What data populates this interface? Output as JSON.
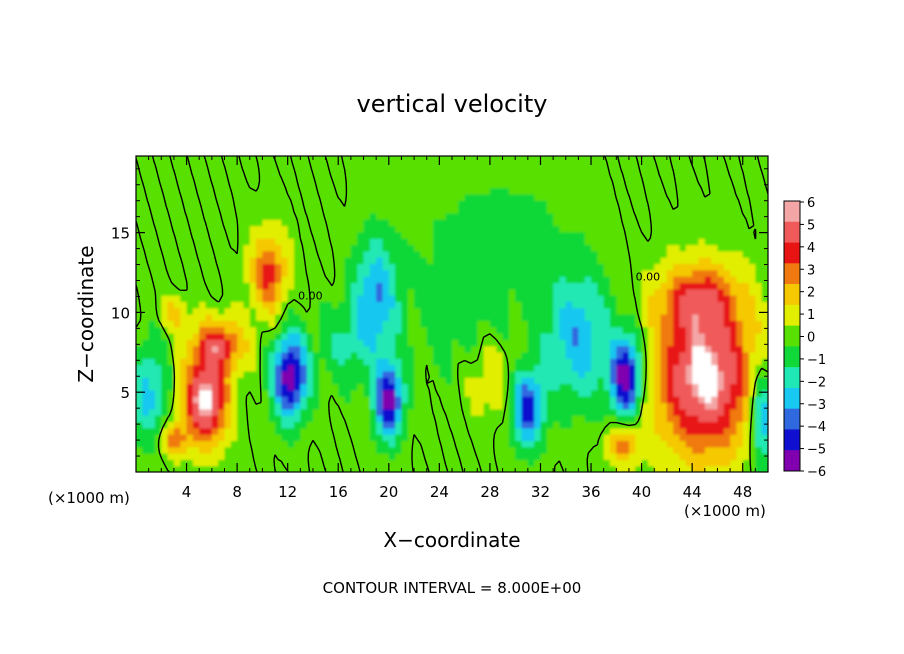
{
  "chart_data": {
    "type": "heatmap",
    "title": "vertical velocity",
    "xlabel": "X−coordinate",
    "ylabel": "Z−coordinate",
    "x_unit_label": "(×1000 m)",
    "y_unit_label": "(×1000 m)",
    "footer": "CONTOUR INTERVAL = 8.000E+00",
    "xlim": [
      0,
      50
    ],
    "ylim": [
      0,
      19.8
    ],
    "x_ticks": [
      4,
      8,
      12,
      16,
      20,
      24,
      28,
      32,
      36,
      40,
      44,
      48
    ],
    "x_tick_labels": [
      "4",
      "8",
      "12",
      "16",
      "20",
      "24",
      "28",
      "32",
      "36",
      "40",
      "44",
      "48"
    ],
    "y_ticks": [
      5,
      10,
      15
    ],
    "y_tick_labels": [
      "5",
      "10",
      "15"
    ],
    "contour_labels": [
      {
        "text": "0.00",
        "x": 13.8,
        "y": 10.8
      },
      {
        "text": "0.00",
        "x": 40.5,
        "y": 12.0
      }
    ],
    "colorbar": {
      "levels": [
        6,
        5,
        4,
        3,
        2,
        1,
        0,
        -1,
        -2,
        -3,
        -4,
        -5,
        -6
      ],
      "labels": [
        "6",
        "5",
        "4",
        "3",
        "2",
        "1",
        "0",
        "−1",
        "−2",
        "−3",
        "−4",
        "−5",
        "−6"
      ],
      "colors": [
        "#f4a6a6",
        "#f05a5a",
        "#e81414",
        "#f07a10",
        "#f5c800",
        "#e2ee00",
        "#58e000",
        "#10d838",
        "#20e8b4",
        "#18c8f0",
        "#3068e0",
        "#1010d0",
        "#8000b0"
      ]
    },
    "field_background": "#4fe03a",
    "features": [
      {
        "name": "updraft",
        "x": 5.5,
        "y": 4.5,
        "sx": 1.7,
        "sy": 2.6,
        "amp": 6.5
      },
      {
        "name": "updraft",
        "x": 6.5,
        "y": 8.0,
        "sx": 2.0,
        "sy": 1.6,
        "amp": 4.2
      },
      {
        "name": "updraft",
        "x": 10.5,
        "y": 12.5,
        "sx": 1.4,
        "sy": 2.4,
        "amp": 3.8
      },
      {
        "name": "updraft",
        "x": 3.0,
        "y": 10.0,
        "sx": 1.0,
        "sy": 1.0,
        "amp": 2.0
      },
      {
        "name": "updraft",
        "x": 3.0,
        "y": 2.0,
        "sx": 1.0,
        "sy": 1.0,
        "amp": 3.0
      },
      {
        "name": "updraft",
        "x": 45.0,
        "y": 6.0,
        "sx": 3.8,
        "sy": 4.8,
        "amp": 6.5
      },
      {
        "name": "updraft",
        "x": 44.5,
        "y": 11.0,
        "sx": 3.0,
        "sy": 2.0,
        "amp": 3.0
      },
      {
        "name": "updraft",
        "x": 38.5,
        "y": 1.8,
        "sx": 1.2,
        "sy": 1.2,
        "amp": 3.0
      },
      {
        "name": "updraft",
        "x": 28.0,
        "y": 6.0,
        "sx": 2.0,
        "sy": 2.6,
        "amp": 1.4
      },
      {
        "name": "downdraft",
        "x": 12.2,
        "y": 6.0,
        "sx": 1.3,
        "sy": 2.6,
        "amp": -6.5
      },
      {
        "name": "downdraft",
        "x": 20.0,
        "y": 4.5,
        "sx": 1.1,
        "sy": 2.3,
        "amp": -6.0
      },
      {
        "name": "downdraft",
        "x": 19.0,
        "y": 11.0,
        "sx": 1.7,
        "sy": 3.6,
        "amp": -3.6
      },
      {
        "name": "downdraft",
        "x": 31.0,
        "y": 4.0,
        "sx": 1.2,
        "sy": 2.3,
        "amp": -5.0
      },
      {
        "name": "downdraft",
        "x": 35.0,
        "y": 8.5,
        "sx": 2.7,
        "sy": 4.0,
        "amp": -3.3
      },
      {
        "name": "downdraft",
        "x": 38.8,
        "y": 6.0,
        "sx": 1.2,
        "sy": 2.4,
        "amp": -6.5
      },
      {
        "name": "downdraft",
        "x": 1.0,
        "y": 5.0,
        "sx": 1.5,
        "sy": 3.0,
        "amp": -2.8
      },
      {
        "name": "downdraft",
        "x": 49.5,
        "y": 3.5,
        "sx": 1.0,
        "sy": 3.0,
        "amp": -4.0
      },
      {
        "name": "downdraft",
        "x": 16.5,
        "y": 8.0,
        "sx": 2.0,
        "sy": 2.5,
        "amp": -1.6
      },
      {
        "name": "downdraft",
        "x": 26.0,
        "y": 11.0,
        "sx": 4.0,
        "sy": 5.0,
        "amp": -1.2
      },
      {
        "name": "downdraft",
        "x": 30.0,
        "y": 15.0,
        "sx": 4.0,
        "sy": 3.0,
        "amp": -0.9
      }
    ]
  }
}
